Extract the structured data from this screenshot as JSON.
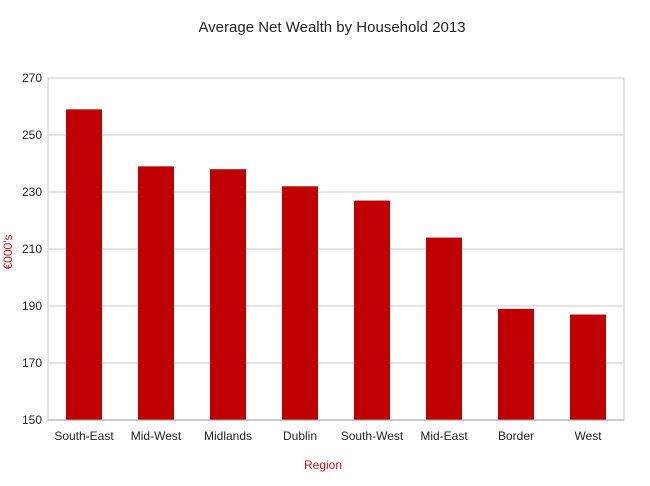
{
  "chart_data": {
    "type": "bar",
    "title": "Average Net Wealth by Household 2013",
    "xlabel": "Region",
    "ylabel": "€000's",
    "categories": [
      "South-East",
      "Mid-West",
      "Midlands",
      "Dublin",
      "South-West",
      "Mid-East",
      "Border",
      "West"
    ],
    "values": [
      259,
      239,
      238,
      232,
      227,
      214,
      189,
      187
    ],
    "ylim": [
      150,
      270
    ],
    "yticks": [
      "150",
      "170",
      "190",
      "210",
      "230",
      "250",
      "270"
    ],
    "grid": true,
    "legend": "none",
    "bar_color": "#c00000"
  }
}
